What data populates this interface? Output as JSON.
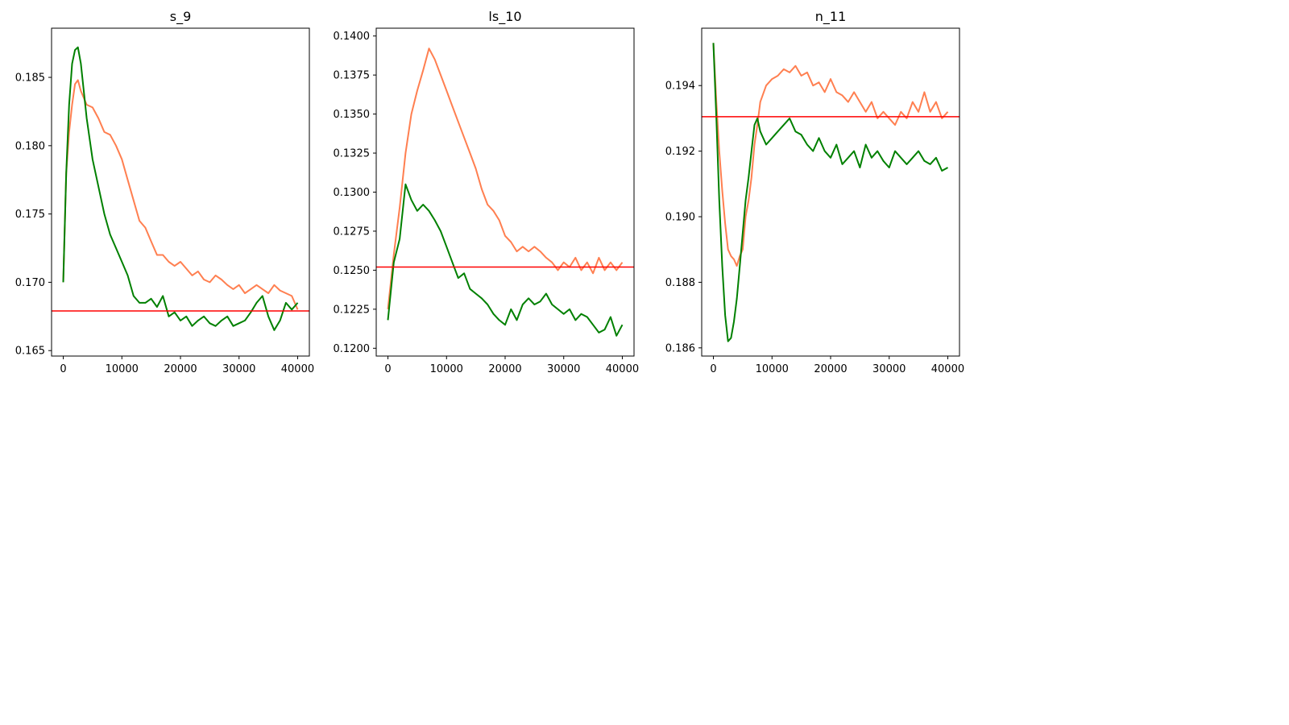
{
  "colors": {
    "orange_series": "#ff7f50",
    "green_series": "#008000",
    "reference_line": "#ff0000",
    "axes": "#000000"
  },
  "chart_data": [
    {
      "type": "line",
      "title": "s_9",
      "xlabel": "",
      "ylabel": "",
      "xlim": [
        -2000,
        42000
      ],
      "ylim": [
        0.1646,
        0.1886
      ],
      "xticks": [
        0,
        10000,
        20000,
        30000,
        40000
      ],
      "yticks": [
        0.165,
        0.17,
        0.175,
        0.18,
        0.185
      ],
      "xtick_labels": [
        "0",
        "10000",
        "20000",
        "30000",
        "40000"
      ],
      "ytick_labels": [
        "0.165",
        "0.170",
        "0.175",
        "0.180",
        "0.185"
      ],
      "grid": false,
      "reference_line": 0.1679,
      "series": [
        {
          "color": "#ff7f50",
          "x": [
            0,
            500,
            1000,
            1500,
            2000,
            2500,
            3000,
            4000,
            5000,
            6000,
            7000,
            8000,
            9000,
            10000,
            11000,
            12000,
            13000,
            14000,
            15000,
            16000,
            17000,
            18000,
            19000,
            20000,
            21000,
            22000,
            23000,
            24000,
            25000,
            26000,
            27000,
            28000,
            29000,
            30000,
            31000,
            32000,
            33000,
            34000,
            35000,
            36000,
            37000,
            38000,
            39000,
            40000
          ],
          "y": [
            0.17,
            0.178,
            0.181,
            0.183,
            0.1845,
            0.1848,
            0.184,
            0.183,
            0.1828,
            0.182,
            0.181,
            0.1808,
            0.18,
            0.179,
            0.1775,
            0.176,
            0.1745,
            0.174,
            0.173,
            0.172,
            0.172,
            0.1715,
            0.1712,
            0.1715,
            0.171,
            0.1705,
            0.1708,
            0.1702,
            0.17,
            0.1705,
            0.1702,
            0.1698,
            0.1695,
            0.1698,
            0.1692,
            0.1695,
            0.1698,
            0.1695,
            0.1692,
            0.1698,
            0.1694,
            0.1692,
            0.169,
            0.168
          ]
        },
        {
          "color": "#008000",
          "x": [
            0,
            500,
            1000,
            1500,
            2000,
            2500,
            3000,
            4000,
            5000,
            6000,
            7000,
            8000,
            9000,
            10000,
            11000,
            12000,
            13000,
            14000,
            15000,
            16000,
            17000,
            18000,
            19000,
            20000,
            21000,
            22000,
            23000,
            24000,
            25000,
            26000,
            27000,
            28000,
            29000,
            30000,
            31000,
            32000,
            33000,
            34000,
            35000,
            36000,
            37000,
            38000,
            39000,
            40000
          ],
          "y": [
            0.17,
            0.178,
            0.183,
            0.186,
            0.187,
            0.1872,
            0.186,
            0.182,
            0.179,
            0.177,
            0.175,
            0.1735,
            0.1725,
            0.1715,
            0.1705,
            0.169,
            0.1685,
            0.1685,
            0.1688,
            0.1682,
            0.169,
            0.1675,
            0.1678,
            0.1672,
            0.1675,
            0.1668,
            0.1672,
            0.1675,
            0.167,
            0.1668,
            0.1672,
            0.1675,
            0.1668,
            0.167,
            0.1672,
            0.1678,
            0.1685,
            0.169,
            0.1675,
            0.1665,
            0.1672,
            0.1685,
            0.168,
            0.1685
          ]
        }
      ]
    },
    {
      "type": "line",
      "title": "ls_10",
      "xlabel": "",
      "ylabel": "",
      "xlim": [
        -2000,
        42000
      ],
      "ylim": [
        0.1195,
        0.1405
      ],
      "xticks": [
        0,
        10000,
        20000,
        30000,
        40000
      ],
      "yticks": [
        0.12,
        0.1225,
        0.125,
        0.1275,
        0.13,
        0.1325,
        0.135,
        0.1375,
        0.14
      ],
      "xtick_labels": [
        "0",
        "10000",
        "20000",
        "30000",
        "40000"
      ],
      "ytick_labels": [
        "0.1200",
        "0.1225",
        "0.1250",
        "0.1275",
        "0.1300",
        "0.1325",
        "0.1350",
        "0.1375",
        "0.1400"
      ],
      "grid": false,
      "reference_line": 0.1252,
      "series": [
        {
          "color": "#ff7f50",
          "x": [
            0,
            1000,
            2000,
            3000,
            4000,
            5000,
            6000,
            7000,
            8000,
            9000,
            10000,
            11000,
            12000,
            13000,
            14000,
            15000,
            16000,
            17000,
            18000,
            19000,
            20000,
            21000,
            22000,
            23000,
            24000,
            25000,
            26000,
            27000,
            28000,
            29000,
            30000,
            31000,
            32000,
            33000,
            34000,
            35000,
            36000,
            37000,
            38000,
            39000,
            40000
          ],
          "y": [
            0.1225,
            0.126,
            0.129,
            0.1325,
            0.135,
            0.1365,
            0.1378,
            0.1392,
            0.1385,
            0.1375,
            0.1365,
            0.1355,
            0.1345,
            0.1335,
            0.1325,
            0.1315,
            0.1302,
            0.1292,
            0.1288,
            0.1282,
            0.1272,
            0.1268,
            0.1262,
            0.1265,
            0.1262,
            0.1265,
            0.1262,
            0.1258,
            0.1255,
            0.125,
            0.1255,
            0.1252,
            0.1258,
            0.125,
            0.1255,
            0.1248,
            0.1258,
            0.125,
            0.1255,
            0.125,
            0.1255
          ]
        },
        {
          "color": "#008000",
          "x": [
            0,
            1000,
            2000,
            3000,
            4000,
            5000,
            6000,
            7000,
            8000,
            9000,
            10000,
            11000,
            12000,
            13000,
            14000,
            15000,
            16000,
            17000,
            18000,
            19000,
            20000,
            21000,
            22000,
            23000,
            24000,
            25000,
            26000,
            27000,
            28000,
            29000,
            30000,
            31000,
            32000,
            33000,
            34000,
            35000,
            36000,
            37000,
            38000,
            39000,
            40000
          ],
          "y": [
            0.1218,
            0.1255,
            0.127,
            0.1305,
            0.1295,
            0.1288,
            0.1292,
            0.1288,
            0.1282,
            0.1275,
            0.1265,
            0.1255,
            0.1245,
            0.1248,
            0.1238,
            0.1235,
            0.1232,
            0.1228,
            0.1222,
            0.1218,
            0.1215,
            0.1225,
            0.1218,
            0.1228,
            0.1232,
            0.1228,
            0.123,
            0.1235,
            0.1228,
            0.1225,
            0.1222,
            0.1225,
            0.1218,
            0.1222,
            0.122,
            0.1215,
            0.121,
            0.1212,
            0.122,
            0.1208,
            0.1215
          ]
        }
      ]
    },
    {
      "type": "line",
      "title": "n_11",
      "xlabel": "",
      "ylabel": "",
      "xlim": [
        -2000,
        42000
      ],
      "ylim": [
        0.18575,
        0.19575
      ],
      "xticks": [
        0,
        10000,
        20000,
        30000,
        40000
      ],
      "yticks": [
        0.186,
        0.188,
        0.19,
        0.192,
        0.194
      ],
      "xtick_labels": [
        "0",
        "10000",
        "20000",
        "30000",
        "40000"
      ],
      "ytick_labels": [
        "0.186",
        "0.188",
        "0.190",
        "0.192",
        "0.194"
      ],
      "grid": false,
      "reference_line": 0.19305,
      "series": [
        {
          "color": "#ff7f50",
          "x": [
            0,
            500,
            1000,
            1500,
            2000,
            2500,
            3000,
            3500,
            4000,
            4500,
            5000,
            5500,
            6000,
            6500,
            7000,
            7500,
            8000,
            9000,
            10000,
            11000,
            12000,
            13000,
            14000,
            15000,
            16000,
            17000,
            18000,
            19000,
            20000,
            21000,
            22000,
            23000,
            24000,
            25000,
            26000,
            27000,
            28000,
            29000,
            30000,
            31000,
            32000,
            33000,
            34000,
            35000,
            36000,
            37000,
            38000,
            39000,
            40000
          ],
          "y": [
            0.1953,
            0.1935,
            0.192,
            0.1908,
            0.1898,
            0.189,
            0.1888,
            0.1887,
            0.1885,
            0.1888,
            0.189,
            0.19,
            0.1905,
            0.1912,
            0.1922,
            0.1928,
            0.1935,
            0.194,
            0.1942,
            0.1943,
            0.1945,
            0.1944,
            0.1946,
            0.1943,
            0.1944,
            0.194,
            0.1941,
            0.1938,
            0.1942,
            0.1938,
            0.1937,
            0.1935,
            0.1938,
            0.1935,
            0.1932,
            0.1935,
            0.193,
            0.1932,
            0.193,
            0.1928,
            0.1932,
            0.193,
            0.1935,
            0.1932,
            0.1938,
            0.1932,
            0.1935,
            0.193,
            0.1932
          ]
        },
        {
          "color": "#008000",
          "x": [
            0,
            500,
            1000,
            1500,
            2000,
            2500,
            3000,
            3500,
            4000,
            4500,
            5000,
            5500,
            6000,
            6500,
            7000,
            7500,
            8000,
            9000,
            10000,
            11000,
            12000,
            13000,
            14000,
            15000,
            16000,
            17000,
            18000,
            19000,
            20000,
            21000,
            22000,
            23000,
            24000,
            25000,
            26000,
            27000,
            28000,
            29000,
            30000,
            31000,
            32000,
            33000,
            34000,
            35000,
            36000,
            37000,
            38000,
            39000,
            40000
          ],
          "y": [
            0.1953,
            0.193,
            0.1905,
            0.1885,
            0.187,
            0.1862,
            0.1863,
            0.1868,
            0.1875,
            0.1885,
            0.1895,
            0.1905,
            0.1912,
            0.192,
            0.1928,
            0.193,
            0.1926,
            0.1922,
            0.1924,
            0.1926,
            0.1928,
            0.193,
            0.1926,
            0.1925,
            0.1922,
            0.192,
            0.1924,
            0.192,
            0.1918,
            0.1922,
            0.1916,
            0.1918,
            0.192,
            0.1915,
            0.1922,
            0.1918,
            0.192,
            0.1917,
            0.1915,
            0.192,
            0.1918,
            0.1916,
            0.1918,
            0.192,
            0.1917,
            0.1916,
            0.1918,
            0.1914,
            0.1915
          ]
        }
      ]
    }
  ]
}
